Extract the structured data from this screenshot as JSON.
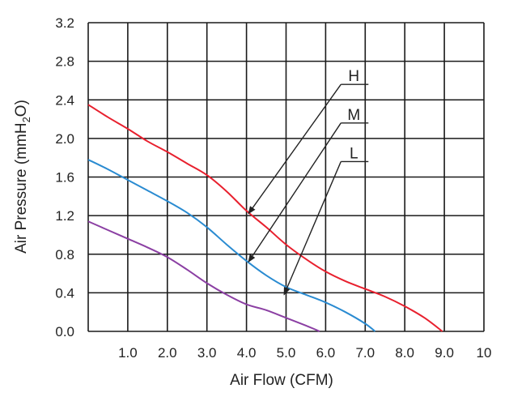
{
  "chart_data": {
    "type": "line",
    "title": "",
    "xlabel": "Air Flow (CFM)",
    "ylabel_main": "Air Pressure (mmH",
    "ylabel_sub": "2",
    "ylabel_end": "O)",
    "xlim": [
      0,
      10
    ],
    "ylim": [
      0,
      3.2
    ],
    "grid": true,
    "x_ticks": [
      "1.0",
      "2.0",
      "3.0",
      "4.0",
      "5.0",
      "6.0",
      "7.0",
      "8.0",
      "9.0",
      "10"
    ],
    "y_ticks": [
      "0.0",
      "0.4",
      "0.8",
      "1.2",
      "1.6",
      "2.0",
      "2.4",
      "2.8",
      "3.2"
    ],
    "series": [
      {
        "name": "H",
        "color": "#e8202e",
        "x": [
          0.0,
          0.5,
          1.0,
          1.5,
          2.0,
          2.5,
          3.0,
          3.5,
          4.0,
          4.5,
          5.0,
          5.5,
          6.0,
          6.5,
          7.0,
          7.5,
          8.0,
          8.5,
          8.95
        ],
        "y": [
          2.35,
          2.22,
          2.1,
          1.97,
          1.86,
          1.74,
          1.62,
          1.45,
          1.25,
          1.08,
          0.9,
          0.75,
          0.62,
          0.52,
          0.44,
          0.36,
          0.26,
          0.14,
          0.0
        ]
      },
      {
        "name": "M",
        "color": "#2a8bd1",
        "x": [
          0.0,
          0.5,
          1.0,
          1.5,
          2.0,
          2.5,
          3.0,
          3.5,
          4.0,
          4.5,
          5.0,
          5.5,
          6.0,
          6.5,
          7.0,
          7.25
        ],
        "y": [
          1.78,
          1.68,
          1.57,
          1.46,
          1.35,
          1.23,
          1.08,
          0.9,
          0.73,
          0.58,
          0.46,
          0.38,
          0.3,
          0.2,
          0.08,
          0.0
        ]
      },
      {
        "name": "L",
        "color": "#8b3fa3",
        "x": [
          0.0,
          0.5,
          1.0,
          1.5,
          2.0,
          2.5,
          3.0,
          3.5,
          4.0,
          4.5,
          5.0,
          5.5,
          5.85
        ],
        "y": [
          1.14,
          1.05,
          0.96,
          0.87,
          0.77,
          0.64,
          0.5,
          0.38,
          0.28,
          0.22,
          0.14,
          0.06,
          0.0
        ]
      }
    ],
    "annotations": [
      {
        "text": "H",
        "label_at": [
          6.55,
          2.56
        ],
        "arrow_to": [
          4.05,
          1.22
        ]
      },
      {
        "text": "M",
        "label_at": [
          6.55,
          2.16
        ],
        "arrow_to": [
          4.05,
          0.72
        ]
      },
      {
        "text": "L",
        "label_at": [
          6.55,
          1.76
        ],
        "arrow_to": [
          4.95,
          0.38
        ]
      }
    ]
  }
}
